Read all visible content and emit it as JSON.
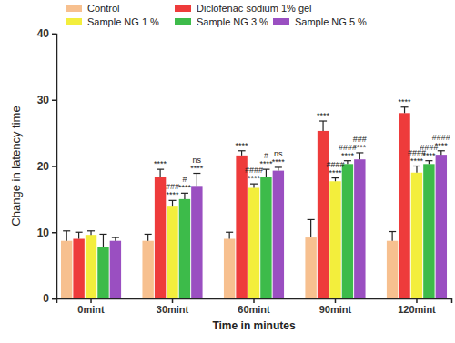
{
  "chart_data": {
    "type": "bar",
    "x_label": "Time in minutes",
    "y_label": "Change in latency time",
    "categories": [
      "0mint",
      "30mint",
      "60mint",
      "90mint",
      "120mint"
    ],
    "ylim": [
      0,
      40
    ],
    "yticks": [
      0,
      10,
      20,
      30,
      40
    ],
    "grid": false,
    "legend": "top",
    "series": [
      {
        "name": "Control",
        "color": "#f7c08f",
        "values": [
          8.7,
          8.7,
          9.0,
          9.2,
          8.7
        ],
        "errors": [
          1.5,
          1.0,
          1.0,
          2.7,
          1.4
        ],
        "annotations": [
          null,
          null,
          null,
          null,
          null
        ]
      },
      {
        "name": "Diclofenac sodium 1% gel",
        "color": "#ee3b3b",
        "values": [
          9.0,
          18.3,
          21.6,
          25.3,
          28.0
        ],
        "errors": [
          1.0,
          1.2,
          0.7,
          1.5,
          0.9
        ],
        "annotations": [
          null,
          [
            "****"
          ],
          [
            "****"
          ],
          [
            "****"
          ],
          [
            "****"
          ]
        ]
      },
      {
        "name": "Sample NG 1 %",
        "color": "#f3ee3c",
        "values": [
          9.6,
          14.0,
          16.7,
          17.7,
          19.0
        ],
        "errors": [
          0.6,
          0.8,
          0.6,
          0.5,
          1.0
        ],
        "annotations": [
          null,
          [
            "###",
            "****"
          ],
          [
            "####",
            "****"
          ],
          [
            "####",
            "****"
          ],
          [
            "####",
            "****"
          ]
        ]
      },
      {
        "name": "Sample NG 3 %",
        "color": "#3dbb4a",
        "values": [
          7.7,
          15.0,
          18.3,
          20.3,
          20.3
        ],
        "errors": [
          2.0,
          0.9,
          1.2,
          0.5,
          0.5
        ],
        "annotations": [
          null,
          [
            "#",
            "****"
          ],
          [
            "#",
            "****"
          ],
          [
            "####",
            "****"
          ],
          [
            "####",
            "****"
          ]
        ]
      },
      {
        "name": "Sample NG 5 %",
        "color": "#9a4fc1",
        "values": [
          8.7,
          17.0,
          19.3,
          21.0,
          21.7
        ],
        "errors": [
          0.5,
          1.9,
          0.5,
          1.0,
          0.6
        ],
        "annotations": [
          null,
          [
            "ns",
            "****"
          ],
          [
            "ns",
            "****"
          ],
          [
            "###",
            "****"
          ],
          [
            "####",
            "****"
          ]
        ]
      }
    ]
  }
}
